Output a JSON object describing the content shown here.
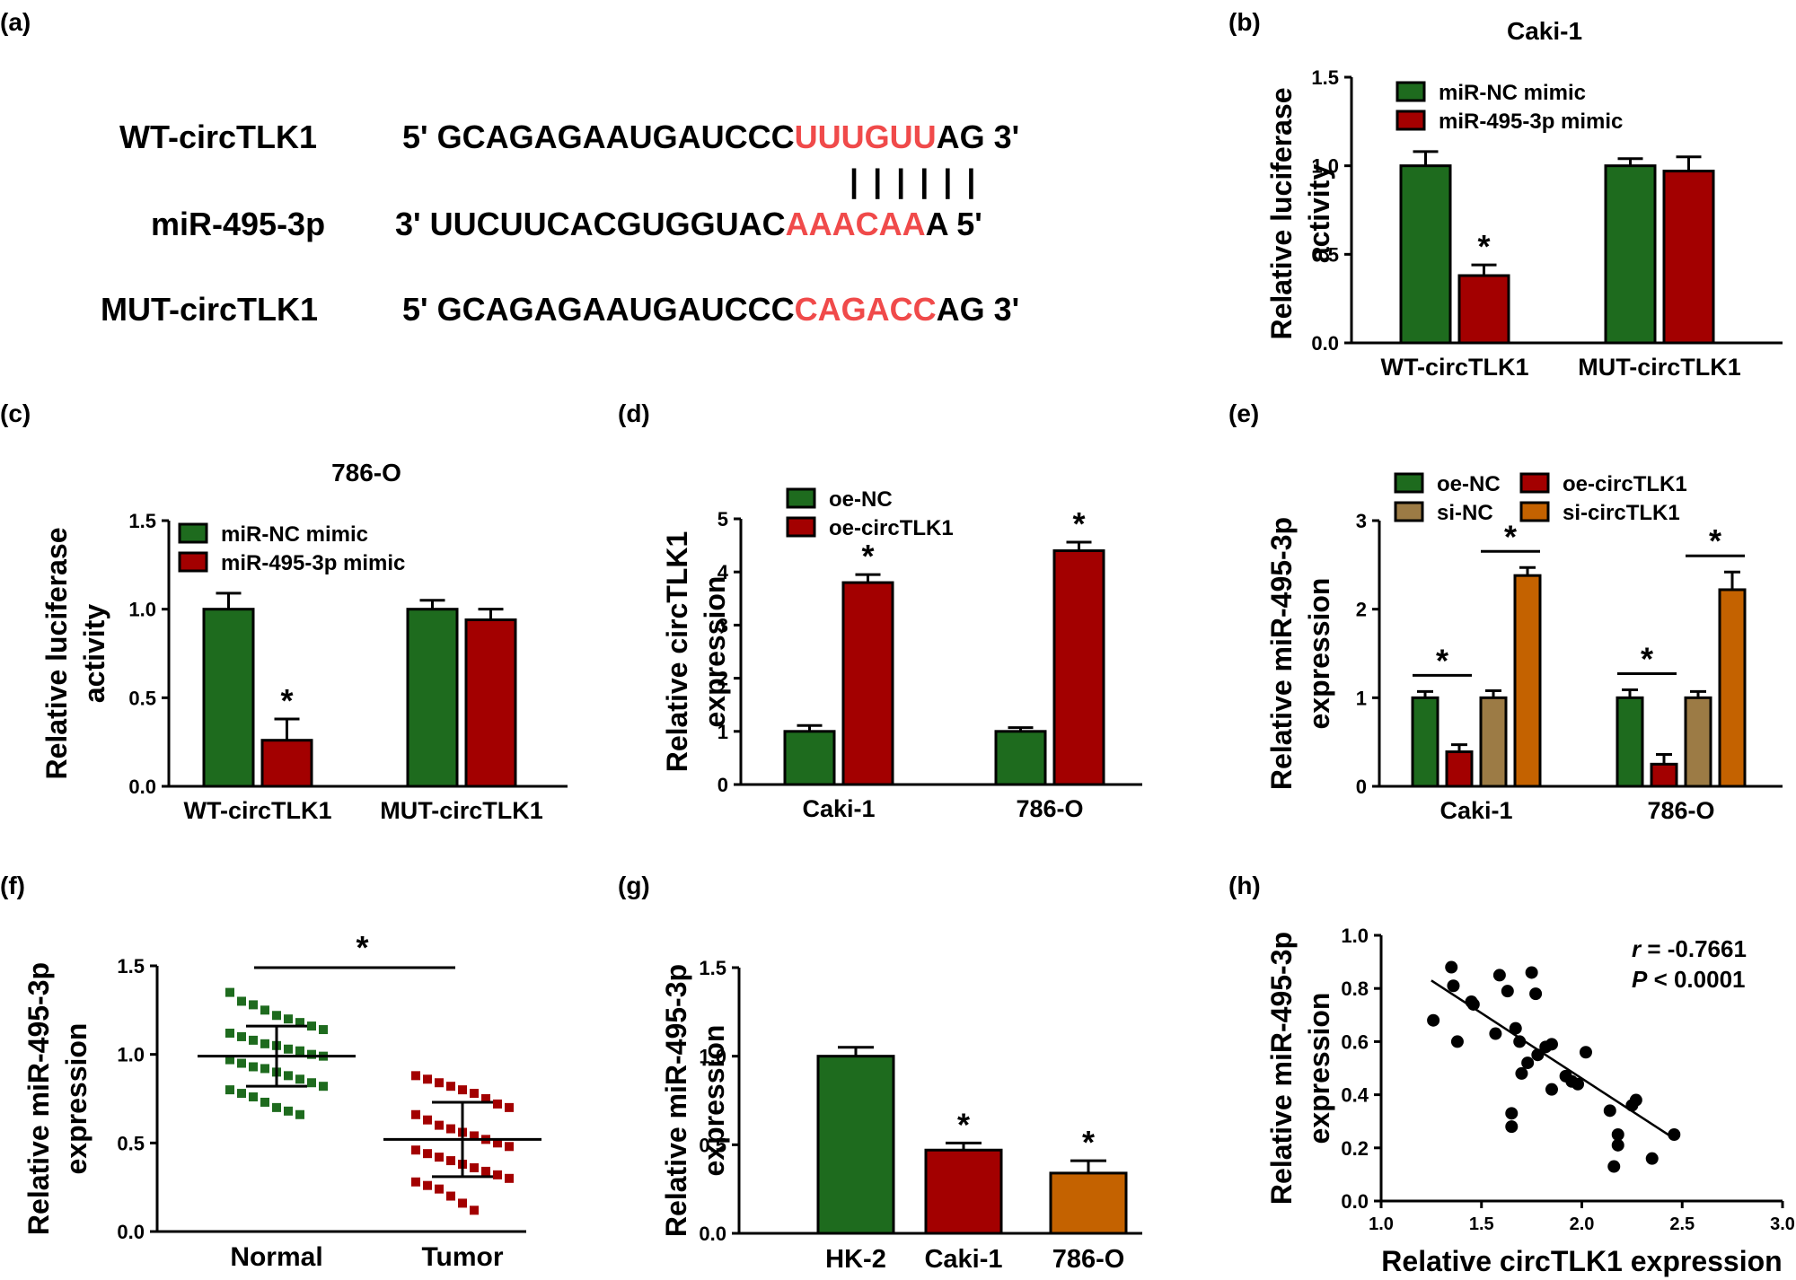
{
  "colors": {
    "green": "#1e6b1e",
    "red": "#a30000",
    "tan": "#9c7b45",
    "orange": "#c46200",
    "highlight": "#f04a4a",
    "black": "#000000"
  },
  "panel_a": {
    "label": "(a)",
    "rows": [
      {
        "name": "WT-circTLK1",
        "prefix": "5'",
        "seq_plain": "GCAGAGAAUGAUCCC",
        "seq_hl": "UUUGUU",
        "seq_tail": "AG",
        "suffix": "3'"
      },
      {
        "name": "miR-495-3p",
        "prefix": "3'",
        "seq_plain": "UUCUUCACGUGGUAC",
        "seq_hl": "AAACAA",
        "seq_tail": "A",
        "suffix": "5'"
      },
      {
        "name": "MUT-circTLK1",
        "prefix": "5'",
        "seq_plain": "GCAGAGAAUGAUCCC",
        "seq_hl": "CAGACC",
        "seq_tail": "AG",
        "suffix": "3'"
      }
    ],
    "pairing_marks": "| | | | | |"
  },
  "chart_data": [
    {
      "id": "b",
      "panel_label": "(b)",
      "type": "bar",
      "title": "Caki-1",
      "ylabel": [
        "Relative luciferase",
        "activity"
      ],
      "ylim": [
        0,
        1.5
      ],
      "yticks": [
        "0.0",
        "0.5",
        "1.0",
        "1.5"
      ],
      "categories": [
        "WT-circTLK1",
        "MUT-circTLK1"
      ],
      "legend": [
        "miR-NC mimic",
        "miR-495-3p mimic"
      ],
      "series": [
        {
          "name": "miR-NC mimic",
          "color": "green",
          "values": [
            1.0,
            1.0
          ],
          "errors": [
            0.08,
            0.04
          ]
        },
        {
          "name": "miR-495-3p mimic",
          "color": "red",
          "values": [
            0.38,
            0.97
          ],
          "errors": [
            0.06,
            0.08
          ]
        }
      ],
      "annotations": [
        {
          "text": "*",
          "category": 0,
          "series": 1
        }
      ]
    },
    {
      "id": "c",
      "panel_label": "(c)",
      "type": "bar",
      "title": "786-O",
      "ylabel": [
        "Relative luciferase",
        "activity"
      ],
      "ylim": [
        0,
        1.5
      ],
      "yticks": [
        "0.0",
        "0.5",
        "1.0",
        "1.5"
      ],
      "categories": [
        "WT-circTLK1",
        "MUT-circTLK1"
      ],
      "legend": [
        "miR-NC mimic",
        "miR-495-3p mimic"
      ],
      "series": [
        {
          "name": "miR-NC mimic",
          "color": "green",
          "values": [
            1.0,
            1.0
          ],
          "errors": [
            0.09,
            0.05
          ]
        },
        {
          "name": "miR-495-3p mimic",
          "color": "red",
          "values": [
            0.26,
            0.94
          ],
          "errors": [
            0.12,
            0.06
          ]
        }
      ],
      "annotations": [
        {
          "text": "*",
          "category": 0,
          "series": 1
        }
      ]
    },
    {
      "id": "d",
      "panel_label": "(d)",
      "type": "bar",
      "title": "",
      "ylabel": [
        "Relative circTLK1",
        "expression"
      ],
      "ylim": [
        0,
        5
      ],
      "yticks": [
        "0",
        "1",
        "2",
        "3",
        "4",
        "5"
      ],
      "categories": [
        "Caki-1",
        "786-O"
      ],
      "legend": [
        "oe-NC",
        "oe-circTLK1"
      ],
      "series": [
        {
          "name": "oe-NC",
          "color": "green",
          "values": [
            1.0,
            1.0
          ],
          "errors": [
            0.11,
            0.07
          ]
        },
        {
          "name": "oe-circTLK1",
          "color": "red",
          "values": [
            3.8,
            4.4
          ],
          "errors": [
            0.15,
            0.16
          ]
        }
      ],
      "annotations": [
        {
          "text": "*",
          "category": 0,
          "series": 1
        },
        {
          "text": "*",
          "category": 1,
          "series": 1
        }
      ]
    },
    {
      "id": "e",
      "panel_label": "(e)",
      "type": "bar",
      "title": "",
      "ylabel": [
        "Relative miR-495-3p",
        "expression"
      ],
      "ylim": [
        0,
        3
      ],
      "yticks": [
        "0",
        "1",
        "2",
        "3"
      ],
      "categories": [
        "Caki-1",
        "786-O"
      ],
      "legend": [
        "oe-NC",
        "oe-circTLK1",
        "si-NC",
        "si-circTLK1"
      ],
      "series": [
        {
          "name": "oe-NC",
          "color": "green",
          "values": [
            1.0,
            1.0
          ],
          "errors": [
            0.07,
            0.09
          ]
        },
        {
          "name": "oe-circTLK1",
          "color": "red",
          "values": [
            0.39,
            0.25
          ],
          "errors": [
            0.08,
            0.11
          ]
        },
        {
          "name": "si-NC",
          "color": "tan",
          "values": [
            1.0,
            1.0
          ],
          "errors": [
            0.08,
            0.07
          ]
        },
        {
          "name": "si-circTLK1",
          "color": "orange",
          "values": [
            2.38,
            2.22
          ],
          "errors": [
            0.09,
            0.2
          ]
        }
      ],
      "annotations": [
        {
          "text": "*",
          "category": 0,
          "between": [
            0,
            1
          ]
        },
        {
          "text": "*",
          "category": 0,
          "between": [
            2,
            3
          ]
        },
        {
          "text": "*",
          "category": 1,
          "between": [
            0,
            1
          ]
        },
        {
          "text": "*",
          "category": 1,
          "between": [
            2,
            3
          ]
        }
      ]
    },
    {
      "id": "f",
      "panel_label": "(f)",
      "type": "scatter",
      "title": "",
      "ylabel": [
        "Relative miR-495-3p",
        "expression"
      ],
      "ylim": [
        0,
        1.5
      ],
      "yticks": [
        "0.0",
        "0.5",
        "1.0",
        "1.5"
      ],
      "categories": [
        "Normal",
        "Tumor"
      ],
      "groups": [
        {
          "name": "Normal",
          "color": "green",
          "mean": 0.99,
          "sd": 0.17,
          "values": [
            1.35,
            1.3,
            1.28,
            1.25,
            1.22,
            1.2,
            1.18,
            1.16,
            1.14,
            1.12,
            1.1,
            1.08,
            1.06,
            1.05,
            1.03,
            1.02,
            1.0,
            0.99,
            0.97,
            0.95,
            0.93,
            0.92,
            0.9,
            0.88,
            0.86,
            0.84,
            0.82,
            0.8,
            0.78,
            0.76,
            0.73,
            0.7,
            0.68,
            0.66
          ]
        },
        {
          "name": "Tumor",
          "color": "red",
          "mean": 0.52,
          "sd": 0.21,
          "values": [
            0.88,
            0.86,
            0.84,
            0.82,
            0.8,
            0.78,
            0.75,
            0.72,
            0.7,
            0.66,
            0.63,
            0.6,
            0.58,
            0.56,
            0.54,
            0.52,
            0.5,
            0.48,
            0.46,
            0.44,
            0.42,
            0.4,
            0.38,
            0.36,
            0.34,
            0.32,
            0.3,
            0.28,
            0.26,
            0.24,
            0.2,
            0.16,
            0.12
          ]
        }
      ],
      "annotations": [
        {
          "text": "*",
          "between": [
            0,
            1
          ]
        }
      ]
    },
    {
      "id": "g",
      "panel_label": "(g)",
      "type": "bar",
      "title": "",
      "ylabel": [
        "Relative miR-495-3p",
        "expression"
      ],
      "ylim": [
        0,
        1.5
      ],
      "yticks": [
        "0.0",
        "0.5",
        "1.0",
        "1.5"
      ],
      "categories": [
        "HK-2",
        "Caki-1",
        "786-O"
      ],
      "bars": [
        {
          "name": "HK-2",
          "color": "green",
          "value": 1.0,
          "error": 0.05
        },
        {
          "name": "Caki-1",
          "color": "red",
          "value": 0.47,
          "error": 0.04
        },
        {
          "name": "786-O",
          "color": "orange",
          "value": 0.34,
          "error": 0.07
        }
      ],
      "annotations": [
        {
          "text": "*",
          "bar": 1
        },
        {
          "text": "*",
          "bar": 2
        }
      ]
    },
    {
      "id": "h",
      "panel_label": "(h)",
      "type": "scatter",
      "title": "",
      "xlabel": "Relative circTLK1 expression",
      "ylabel": [
        "Relative miR-495-3p",
        "expression"
      ],
      "xlim": [
        1.0,
        3.0
      ],
      "ylim": [
        0.0,
        1.0
      ],
      "xticks": [
        "1.0",
        "1.5",
        "2.0",
        "2.5",
        "3.0"
      ],
      "yticks": [
        "0.0",
        "0.2",
        "0.4",
        "0.6",
        "0.8",
        "1.0"
      ],
      "stats": {
        "r_label": "r",
        "r_value": " = -0.7661",
        "p_label": "P",
        "p_value": " < 0.0001"
      },
      "fit": {
        "x": [
          1.25,
          2.45
        ],
        "y": [
          0.83,
          0.24
        ]
      },
      "points": [
        [
          1.26,
          0.68
        ],
        [
          1.35,
          0.88
        ],
        [
          1.36,
          0.81
        ],
        [
          1.38,
          0.6
        ],
        [
          1.45,
          0.75
        ],
        [
          1.46,
          0.74
        ],
        [
          1.57,
          0.63
        ],
        [
          1.59,
          0.85
        ],
        [
          1.63,
          0.79
        ],
        [
          1.65,
          0.33
        ],
        [
          1.65,
          0.28
        ],
        [
          1.67,
          0.65
        ],
        [
          1.69,
          0.6
        ],
        [
          1.7,
          0.48
        ],
        [
          1.73,
          0.52
        ],
        [
          1.75,
          0.86
        ],
        [
          1.77,
          0.78
        ],
        [
          1.78,
          0.55
        ],
        [
          1.82,
          0.58
        ],
        [
          1.85,
          0.59
        ],
        [
          1.85,
          0.42
        ],
        [
          1.92,
          0.47
        ],
        [
          1.95,
          0.45
        ],
        [
          1.98,
          0.44
        ],
        [
          2.02,
          0.56
        ],
        [
          2.14,
          0.34
        ],
        [
          2.16,
          0.13
        ],
        [
          2.18,
          0.25
        ],
        [
          2.18,
          0.21
        ],
        [
          2.25,
          0.36
        ],
        [
          2.27,
          0.38
        ],
        [
          2.35,
          0.16
        ],
        [
          2.46,
          0.25
        ]
      ]
    }
  ]
}
